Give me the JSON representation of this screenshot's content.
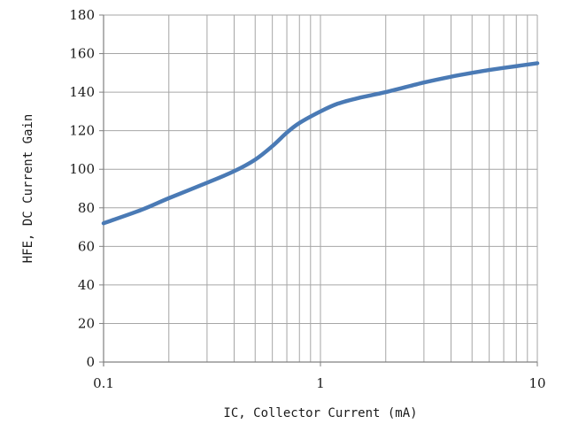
{
  "chart_data": {
    "type": "line",
    "title": "",
    "xlabel": "IC, Collector Current (mA)",
    "ylabel": "HFE, DC Current  Gain",
    "x_scale": "log",
    "xlim": [
      0.1,
      10
    ],
    "ylim": [
      0,
      180
    ],
    "x_ticks": [
      0.1,
      1,
      10
    ],
    "x_tick_labels": [
      "0.1",
      "1",
      "10"
    ],
    "y_ticks": [
      0,
      20,
      40,
      60,
      80,
      100,
      120,
      140,
      160,
      180
    ],
    "y_tick_labels": [
      "0",
      "20",
      "40",
      "60",
      "80",
      "100",
      "120",
      "140",
      "160",
      "180"
    ],
    "grid": true,
    "legend": "none",
    "series_color": "#4a7ab5",
    "series": [
      {
        "x": [
          0.1,
          0.15,
          0.2,
          0.3,
          0.4,
          0.5,
          0.6,
          0.7,
          0.8,
          1.0,
          1.2,
          1.5,
          2.0,
          3.0,
          4.0,
          5.0,
          6.0,
          8.0,
          10.0
        ],
        "y": [
          72,
          79,
          85,
          93,
          99,
          105,
          112,
          119,
          124,
          130,
          134,
          137,
          140,
          145,
          148,
          150,
          151.5,
          153.5,
          155
        ]
      }
    ]
  }
}
